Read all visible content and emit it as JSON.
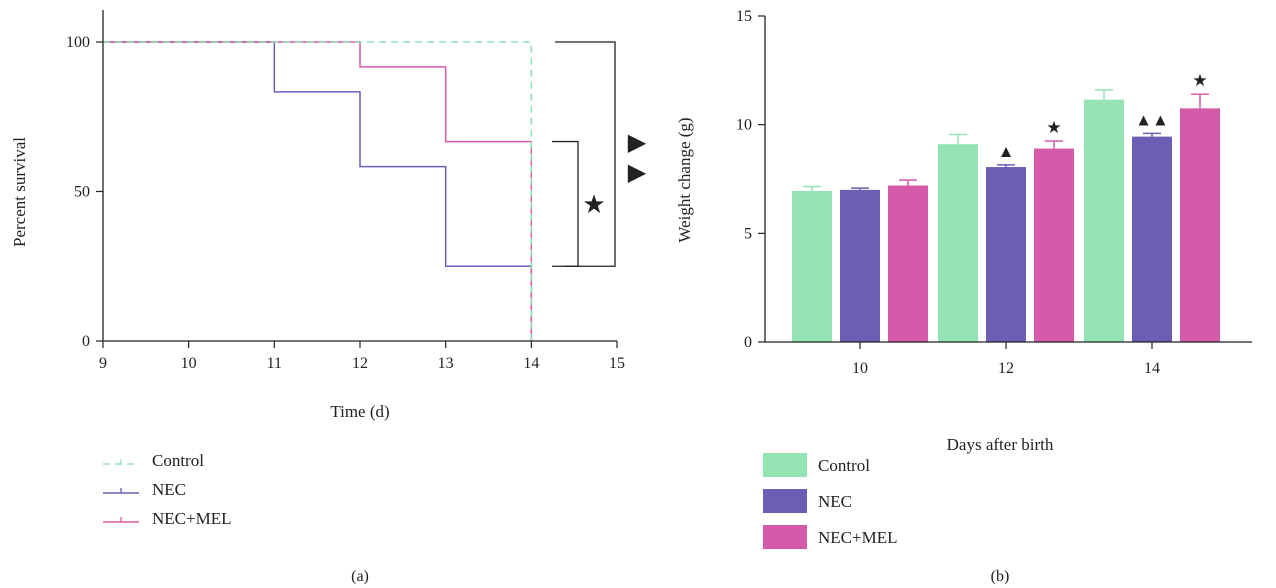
{
  "chart_data": [
    {
      "type": "line",
      "subtype": "kaplan-meier step survival curve",
      "panel_label": "(a)",
      "xlabel": "Time (d)",
      "ylabel": "Percent survival",
      "xlim": [
        9,
        15
      ],
      "ylim": [
        0,
        100
      ],
      "xticks": [
        9,
        10,
        11,
        12,
        13,
        14,
        15
      ],
      "yticks": [
        0,
        50,
        100
      ],
      "series": [
        {
          "name": "Control",
          "color": "#8ee3b5",
          "dash": "dashed",
          "x": [
            9,
            14,
            14
          ],
          "y": [
            100,
            100,
            0
          ]
        },
        {
          "name": "NEC",
          "color": "#6a5fb5",
          "dash": "solid",
          "x": [
            9,
            11,
            11,
            12,
            12,
            13,
            13,
            14,
            14
          ],
          "y": [
            100,
            100,
            83.3,
            83.3,
            58.3,
            58.3,
            25,
            25,
            0
          ]
        },
        {
          "name": "NEC+MEL",
          "color": "#d85aa8",
          "dash": "solid",
          "x": [
            9,
            12,
            12,
            13,
            13,
            14,
            14
          ],
          "y": [
            100,
            100,
            91.7,
            91.7,
            66.7,
            66.7,
            0
          ]
        }
      ],
      "significance": [
        {
          "symbol": "★",
          "from_y": 66.7,
          "to_y": 25,
          "compares": "NEC+MEL vs NEC"
        },
        {
          "symbol": "▶▶",
          "from_y": 100,
          "to_y": 25,
          "compares": "Control vs NEC"
        }
      ],
      "legend": {
        "placement": "below",
        "entries": [
          "Control",
          "NEC",
          "NEC+MEL"
        ]
      }
    },
    {
      "type": "bar",
      "panel_label": "(b)",
      "xlabel": "Days after birth",
      "ylabel": "Weight change (g)",
      "ylim": [
        0,
        15
      ],
      "yticks": [
        0,
        5,
        10,
        15
      ],
      "categories": [
        "10",
        "12",
        "14"
      ],
      "series": [
        {
          "name": "Control",
          "color": "#93e3b5",
          "values": [
            6.95,
            9.1,
            11.15
          ],
          "errors": [
            0.2,
            0.45,
            0.45
          ],
          "markers": [
            "",
            "",
            ""
          ]
        },
        {
          "name": "NEC",
          "color": "#6a5fb5",
          "values": [
            7.0,
            8.05,
            9.45
          ],
          "errors": [
            0.08,
            0.1,
            0.15
          ],
          "markers": [
            "",
            "▲",
            "▲▲"
          ]
        },
        {
          "name": "NEC+MEL",
          "color": "#d65aaa",
          "values": [
            7.2,
            8.9,
            10.75
          ],
          "errors": [
            0.25,
            0.35,
            0.65
          ],
          "markers": [
            "",
            "★",
            "★"
          ]
        }
      ],
      "legend": {
        "placement": "below",
        "entries": [
          "Control",
          "NEC",
          "NEC+MEL"
        ]
      }
    }
  ]
}
